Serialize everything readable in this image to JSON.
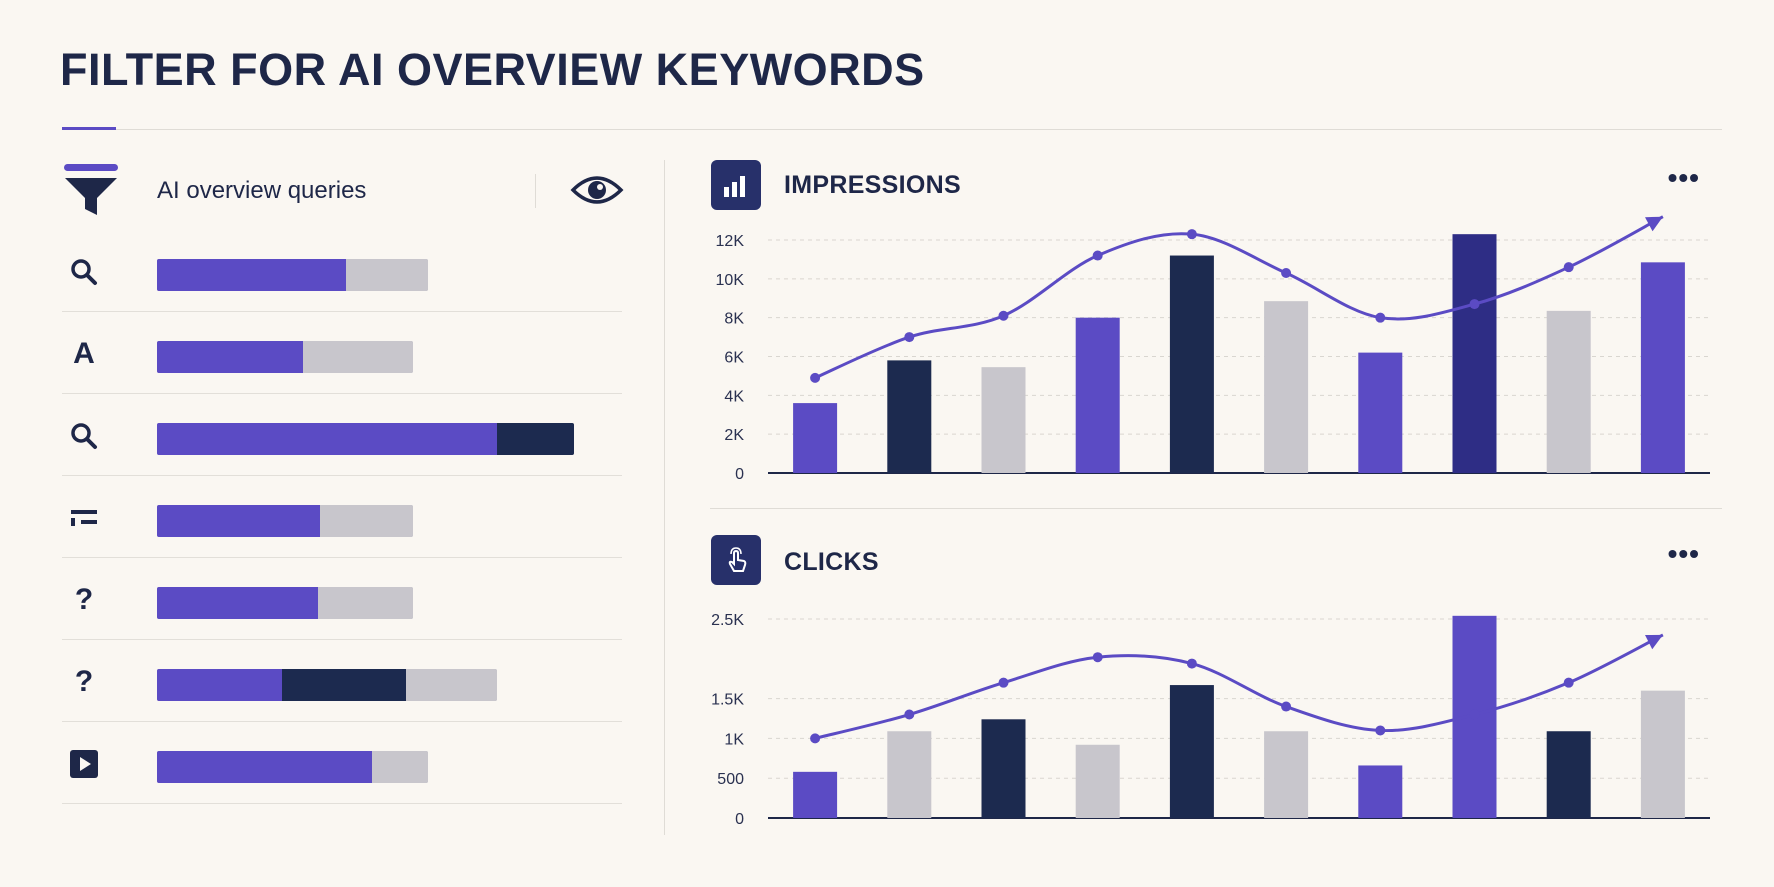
{
  "page": {
    "title": "FILTER FOR AI OVERVIEW KEYWORDS"
  },
  "colors": {
    "purple": "#5b4bc4",
    "navy": "#1c2a4f",
    "indigo": "#2e2d85",
    "gray": "#c8c6cc",
    "line": "#5b4bc4"
  },
  "filter": {
    "label": "AI overview queries",
    "icon": "funnel-icon",
    "view_icon": "eye-icon"
  },
  "query_rows": [
    {
      "icon": "search-icon",
      "glyph": "",
      "segments": [
        {
          "color": "purple",
          "fraction": 0.44
        },
        {
          "color": "gray",
          "fraction": 0.19
        }
      ]
    },
    {
      "icon": "letter-a-icon",
      "glyph": "A",
      "segments": [
        {
          "color": "purple",
          "fraction": 0.34
        },
        {
          "color": "gray",
          "fraction": 0.255
        }
      ]
    },
    {
      "icon": "search-icon",
      "glyph": "",
      "segments": [
        {
          "color": "purple",
          "fraction": 0.79
        },
        {
          "color": "navy",
          "fraction": 0.18
        }
      ]
    },
    {
      "icon": "snippet-icon",
      "glyph": "",
      "segments": [
        {
          "color": "purple",
          "fraction": 0.38
        },
        {
          "color": "gray",
          "fraction": 0.215
        }
      ]
    },
    {
      "icon": "question-icon",
      "glyph": "?",
      "segments": [
        {
          "color": "purple",
          "fraction": 0.375
        },
        {
          "color": "gray",
          "fraction": 0.22
        }
      ]
    },
    {
      "icon": "question-icon",
      "glyph": "?",
      "segments": [
        {
          "color": "purple",
          "fraction": 0.29
        },
        {
          "color": "navy",
          "fraction": 0.29
        },
        {
          "color": "gray",
          "fraction": 0.21
        }
      ]
    },
    {
      "icon": "video-play-icon",
      "glyph": "",
      "segments": [
        {
          "color": "purple",
          "fraction": 0.5
        },
        {
          "color": "gray",
          "fraction": 0.13
        }
      ]
    }
  ],
  "chart_data": [
    {
      "type": "bar",
      "title": "IMPRESSIONS",
      "icon": "bar-chart-icon",
      "more_label": "•••",
      "ylim": [
        0,
        12000
      ],
      "yticks": [
        0,
        2000,
        4000,
        6000,
        8000,
        10000,
        12000
      ],
      "ytick_labels": [
        "0",
        "2K",
        "4K",
        "6K",
        "8K",
        "10K",
        "12K"
      ],
      "grid": true,
      "values": [
        3600,
        5800,
        5450,
        8000,
        11200,
        8850,
        6200,
        12300,
        8350,
        10850
      ],
      "bar_colors": [
        "purple",
        "navy",
        "gray",
        "purple",
        "navy",
        "gray",
        "purple",
        "indigo",
        "gray",
        "purple"
      ],
      "trend": [
        4900,
        7000,
        8100,
        11200,
        12300,
        10300,
        8000,
        8700,
        10600,
        13200
      ]
    },
    {
      "type": "bar",
      "title": "CLICKS",
      "icon": "hand-pointer-icon",
      "more_label": "•••",
      "ylim": [
        0,
        2500
      ],
      "yticks": [
        0,
        500,
        1000,
        1500,
        2500
      ],
      "ytick_labels": [
        "0",
        "500",
        "1K",
        "1.5K",
        "2.5K"
      ],
      "grid": true,
      "values": [
        580,
        1090,
        1240,
        920,
        1670,
        1090,
        660,
        2540,
        1090,
        1600
      ],
      "bar_colors": [
        "purple",
        "gray",
        "navy",
        "gray",
        "navy",
        "gray",
        "purple",
        "purple",
        "navy",
        "gray"
      ],
      "trend": [
        1000,
        1300,
        1700,
        2020,
        1940,
        1400,
        1100,
        1300,
        1700,
        2300
      ]
    }
  ]
}
